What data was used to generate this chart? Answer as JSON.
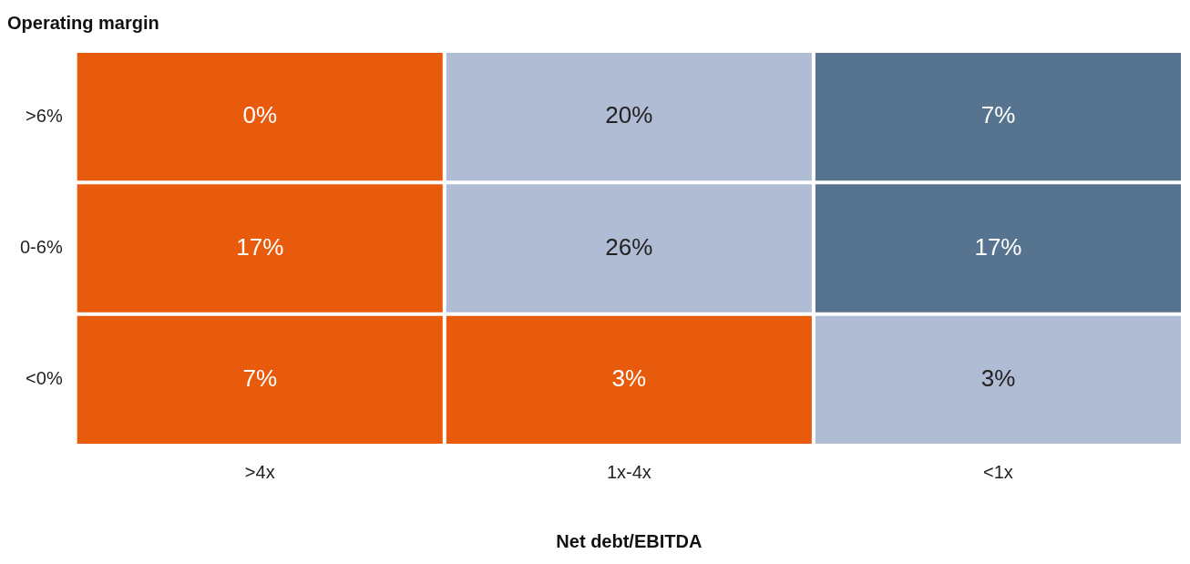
{
  "chart_data": {
    "type": "heatmap",
    "ylabel": "Operating margin",
    "xlabel": "Net debt/EBITDA",
    "categories": [
      ">4x",
      "1x-4x",
      "<1x"
    ],
    "y_categories": [
      ">6%",
      "0-6%",
      "<0%"
    ],
    "cells": [
      [
        0,
        20,
        7
      ],
      [
        17,
        26,
        17
      ],
      [
        7,
        3,
        3
      ]
    ],
    "cell_labels": [
      [
        "0%",
        "20%",
        "7%"
      ],
      [
        "17%",
        "26%",
        "17%"
      ],
      [
        "7%",
        "3%",
        "3%"
      ]
    ],
    "colors": [
      [
        "#e95b0c",
        "#b0bbd4",
        "#56738f"
      ],
      [
        "#e95b0c",
        "#b0bbd4",
        "#56738f"
      ],
      [
        "#e95b0c",
        "#e95b0c",
        "#b0bbd4"
      ]
    ],
    "grid": false,
    "legend": false
  }
}
